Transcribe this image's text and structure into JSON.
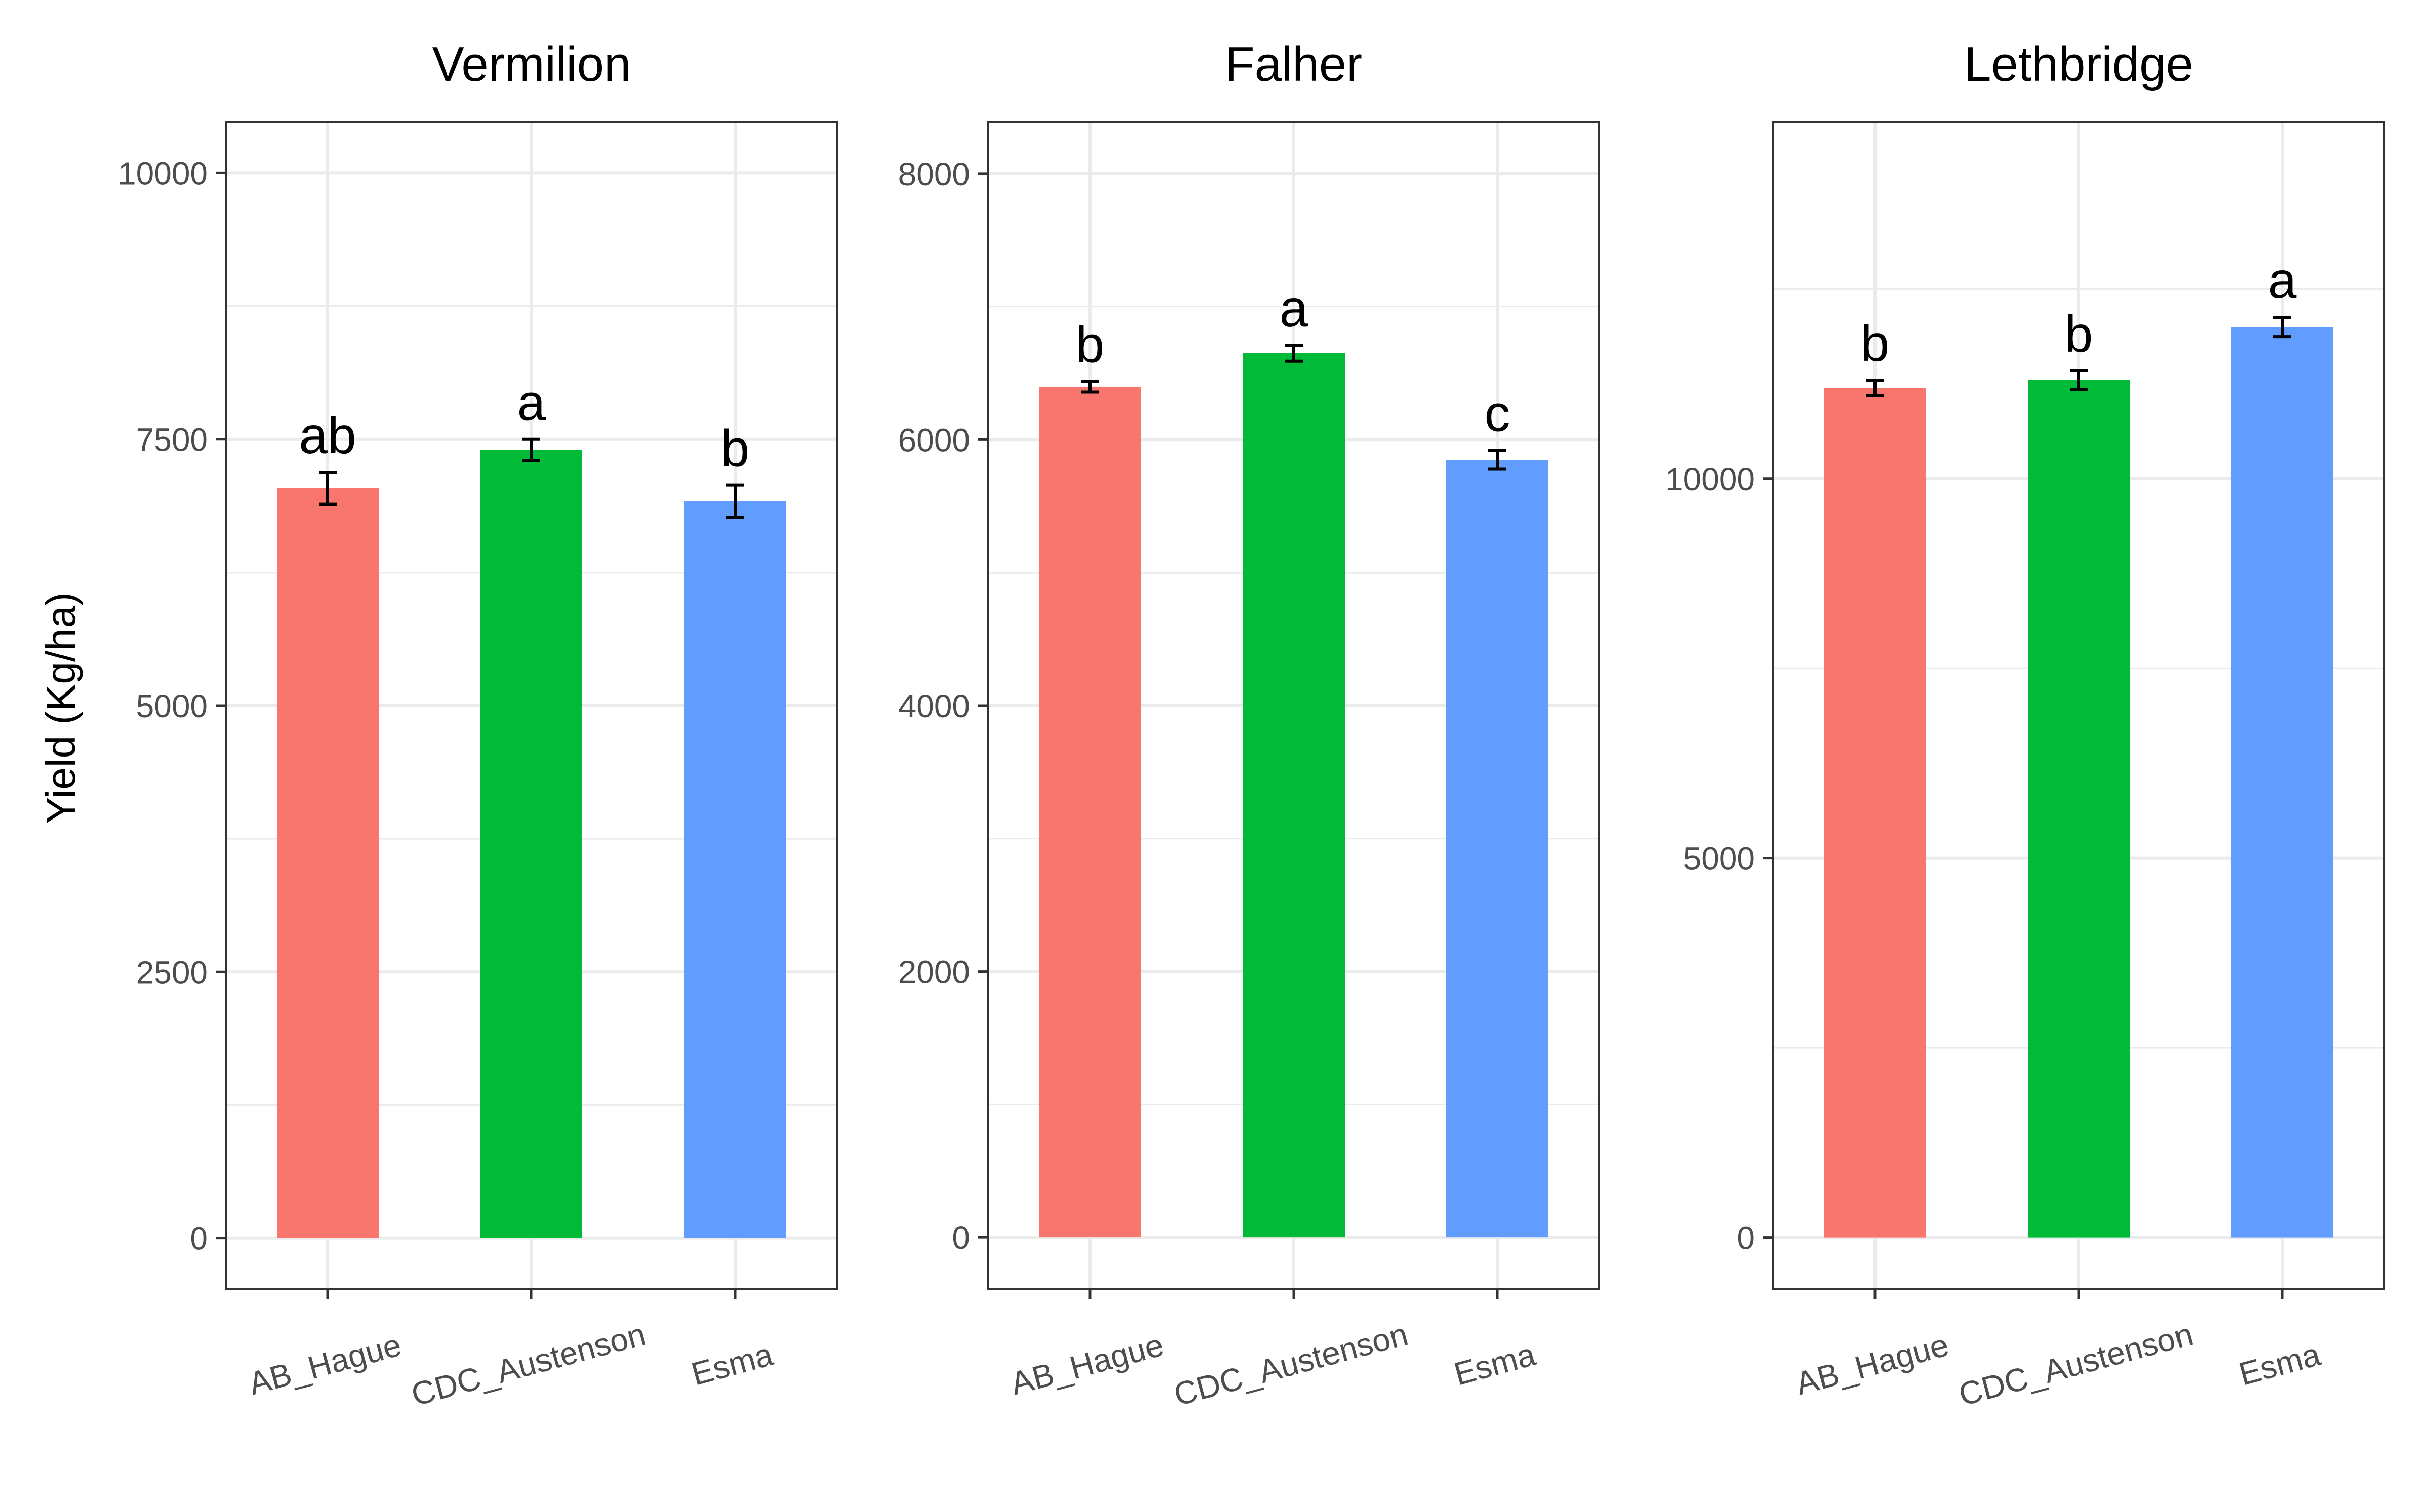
{
  "y_axis_title": "Yield (Kg/ha)",
  "colors": {
    "AB_Hague": "#F8766D",
    "CDC_Austenson": "#00BA38",
    "Esma": "#619CFF"
  },
  "chart_data": [
    {
      "type": "bar",
      "title": "Vermilion",
      "categories": [
        "AB_Hague",
        "CDC_Austenson",
        "Esma"
      ],
      "values": [
        7040,
        7400,
        6920
      ],
      "error": [
        150,
        100,
        150
      ],
      "letters": [
        "ab",
        "a",
        "b"
      ],
      "ylim": [
        -480,
        10480
      ],
      "yticks": [
        0,
        2500,
        5000,
        7500,
        10000
      ],
      "ytick_labels": [
        "0",
        "2500",
        "5000",
        "7500",
        "10000"
      ]
    },
    {
      "type": "bar",
      "title": "Falher",
      "categories": [
        "AB_Hague",
        "CDC_Austenson",
        "Esma"
      ],
      "values": [
        6400,
        6650,
        5850
      ],
      "error": [
        40,
        60,
        70
      ],
      "letters": [
        "b",
        "a",
        "c"
      ],
      "ylim": [
        -390,
        8390
      ],
      "yticks": [
        0,
        2000,
        4000,
        6000,
        8000
      ],
      "ytick_labels": [
        "0",
        "2000",
        "4000",
        "6000",
        "8000"
      ]
    },
    {
      "type": "bar",
      "title": "Lethbridge",
      "categories": [
        "AB_Hague",
        "CDC_Austenson",
        "Esma"
      ],
      "values": [
        11200,
        11300,
        12000
      ],
      "error": [
        100,
        120,
        130
      ],
      "letters": [
        "b",
        "b",
        "a"
      ],
      "ylim": [
        -680,
        14700
      ],
      "yticks": [
        0,
        5000,
        10000
      ],
      "ytick_labels": [
        "0",
        "5000",
        "10000"
      ]
    }
  ]
}
